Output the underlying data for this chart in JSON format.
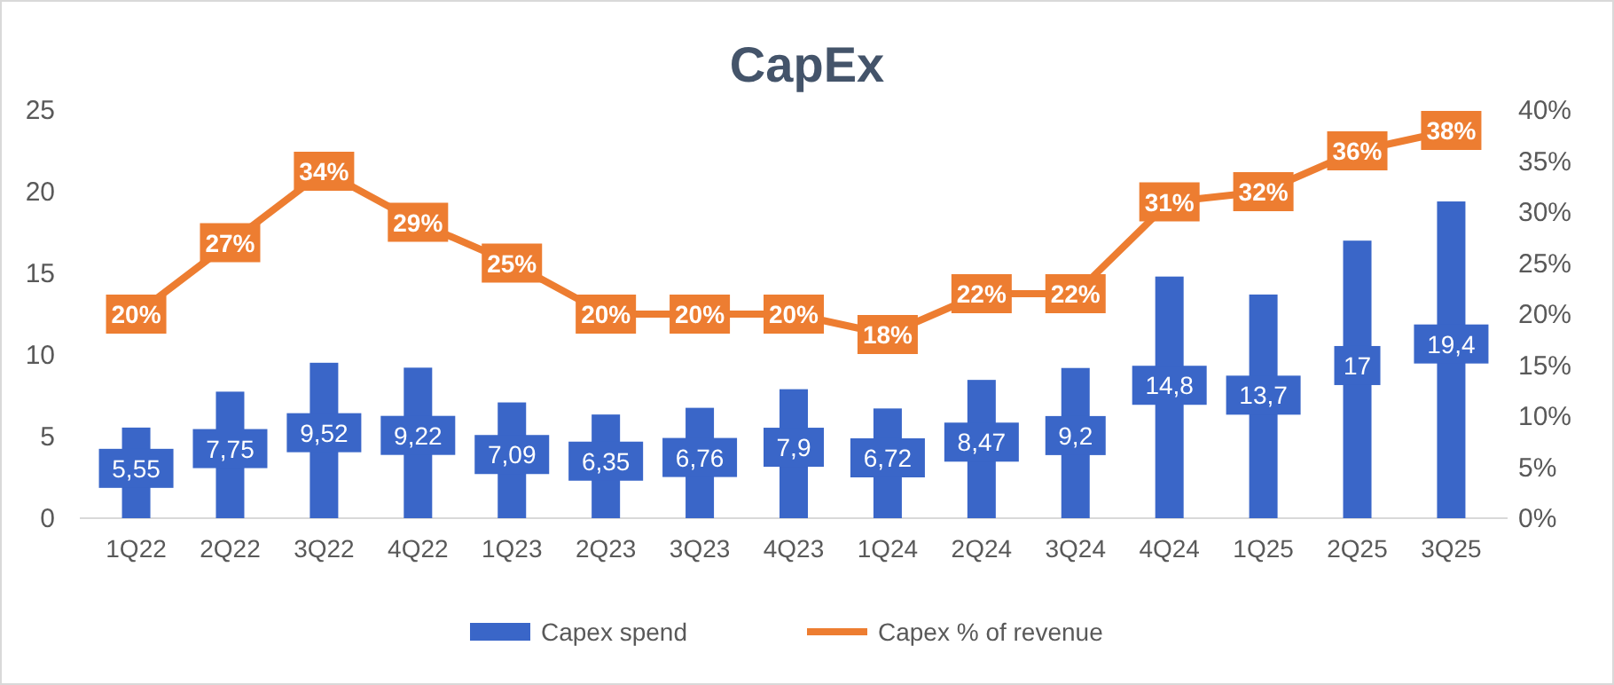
{
  "chart_data": {
    "type": "bar",
    "title": "CapEx",
    "categories": [
      "1Q22",
      "2Q22",
      "3Q22",
      "4Q22",
      "1Q23",
      "2Q23",
      "3Q23",
      "4Q23",
      "1Q24",
      "2Q24",
      "3Q24",
      "4Q24",
      "1Q25",
      "2Q25",
      "3Q25"
    ],
    "series": [
      {
        "name": "Capex spend",
        "color": "#3a66c8",
        "values": [
          5.55,
          7.75,
          9.52,
          9.22,
          7.09,
          6.35,
          6.76,
          7.9,
          6.72,
          8.47,
          9.2,
          14.8,
          13.7,
          17,
          19.4
        ],
        "value_labels": [
          "5,55",
          "7,75",
          "9,52",
          "9,22",
          "7,09",
          "6,35",
          "6,76",
          "7,9",
          "6,72",
          "8,47",
          "9,2",
          "14,8",
          "13,7",
          "17",
          "19,4"
        ]
      },
      {
        "name": "Capex % of revenue",
        "type": "line",
        "axis": "y2",
        "marker": "square",
        "color": "#ed7d31",
        "values": [
          20,
          27,
          34,
          29,
          25,
          20,
          20,
          20,
          18,
          22,
          22,
          31,
          32,
          36,
          38
        ],
        "value_labels": [
          "20%",
          "27%",
          "34%",
          "29%",
          "25%",
          "20%",
          "20%",
          "20%",
          "18%",
          "22%",
          "22%",
          "31%",
          "32%",
          "36%",
          "38%"
        ]
      }
    ],
    "ylim": [
      0,
      25
    ],
    "yticks": [
      0,
      5,
      10,
      15,
      20,
      25
    ],
    "y2lim": [
      0,
      40
    ],
    "y2ticks": [
      {
        "value": 0,
        "label": "0%"
      },
      {
        "value": 5,
        "label": "5%"
      },
      {
        "value": 10,
        "label": "10%"
      },
      {
        "value": 15,
        "label": "15%"
      },
      {
        "value": 20,
        "label": "20%"
      },
      {
        "value": 25,
        "label": "25%"
      },
      {
        "value": 30,
        "label": "30%"
      },
      {
        "value": 35,
        "label": "35%"
      },
      {
        "value": 40,
        "label": "40%"
      }
    ],
    "grid": false,
    "legend": "bottom"
  }
}
